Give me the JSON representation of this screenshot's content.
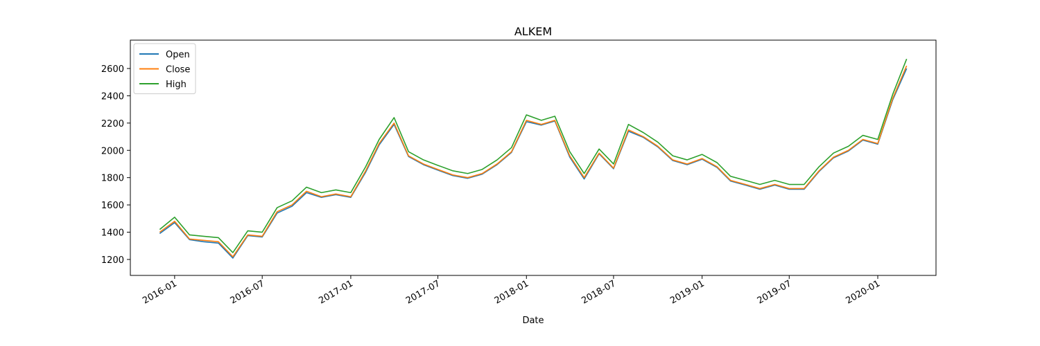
{
  "chart_data": {
    "type": "line",
    "title": "ALKEM",
    "xlabel": "Date",
    "x": [
      "2015-12",
      "2016-01",
      "2016-02",
      "2016-03",
      "2016-04",
      "2016-05",
      "2016-06",
      "2016-07",
      "2016-08",
      "2016-09",
      "2016-10",
      "2016-11",
      "2016-12",
      "2017-01",
      "2017-02",
      "2017-03",
      "2017-04",
      "2017-05",
      "2017-06",
      "2017-07",
      "2017-08",
      "2017-09",
      "2017-10",
      "2017-11",
      "2017-12",
      "2018-01",
      "2018-02",
      "2018-03",
      "2018-04",
      "2018-05",
      "2018-06",
      "2018-07",
      "2018-08",
      "2018-09",
      "2018-10",
      "2018-11",
      "2018-12",
      "2019-01",
      "2019-02",
      "2019-03",
      "2019-04",
      "2019-05",
      "2019-06",
      "2019-07",
      "2019-08",
      "2019-09",
      "2019-10",
      "2019-11",
      "2019-12",
      "2020-01",
      "2020-02",
      "2020-03"
    ],
    "series": [
      {
        "name": "Open",
        "color": "#1f77b4",
        "values": [
          1390,
          1470,
          1345,
          1330,
          1320,
          1210,
          1375,
          1365,
          1540,
          1590,
          1690,
          1655,
          1675,
          1655,
          1840,
          2040,
          2190,
          1955,
          1895,
          1855,
          1815,
          1795,
          1825,
          1895,
          1985,
          2210,
          2185,
          2215,
          1950,
          1790,
          1975,
          1865,
          2140,
          2095,
          2025,
          1925,
          1895,
          1935,
          1875,
          1775,
          1745,
          1715,
          1745,
          1715,
          1715,
          1845,
          1945,
          1995,
          2075,
          2045,
          2370,
          2600
        ]
      },
      {
        "name": "Close",
        "color": "#ff7f0e",
        "values": [
          1400,
          1480,
          1350,
          1340,
          1330,
          1220,
          1380,
          1370,
          1550,
          1600,
          1700,
          1660,
          1680,
          1660,
          1850,
          2050,
          2200,
          1960,
          1900,
          1860,
          1820,
          1800,
          1830,
          1900,
          1990,
          2220,
          2190,
          2220,
          1960,
          1800,
          1980,
          1870,
          2150,
          2100,
          2030,
          1930,
          1900,
          1940,
          1880,
          1780,
          1750,
          1720,
          1750,
          1720,
          1720,
          1850,
          1950,
          2000,
          2080,
          2050,
          2380,
          2620
        ]
      },
      {
        "name": "High",
        "color": "#2ca02c",
        "values": [
          1420,
          1510,
          1380,
          1370,
          1360,
          1250,
          1410,
          1400,
          1580,
          1630,
          1730,
          1690,
          1710,
          1690,
          1880,
          2080,
          2240,
          1990,
          1930,
          1890,
          1850,
          1830,
          1860,
          1930,
          2020,
          2260,
          2220,
          2250,
          1990,
          1830,
          2010,
          1900,
          2190,
          2130,
          2060,
          1960,
          1930,
          1970,
          1910,
          1810,
          1780,
          1750,
          1780,
          1750,
          1750,
          1880,
          1980,
          2030,
          2110,
          2080,
          2410,
          2670
        ]
      }
    ],
    "xlim": [
      "2015-10",
      "2020-05"
    ],
    "xticks": [
      "2016-01",
      "2016-07",
      "2017-01",
      "2017-07",
      "2018-01",
      "2018-07",
      "2019-01",
      "2019-07",
      "2020-01"
    ],
    "ylim": [
      1083,
      2808
    ],
    "yticks": [
      1200,
      1400,
      1600,
      1800,
      2000,
      2200,
      2400,
      2600
    ],
    "grid": false,
    "legend": "upper left"
  }
}
